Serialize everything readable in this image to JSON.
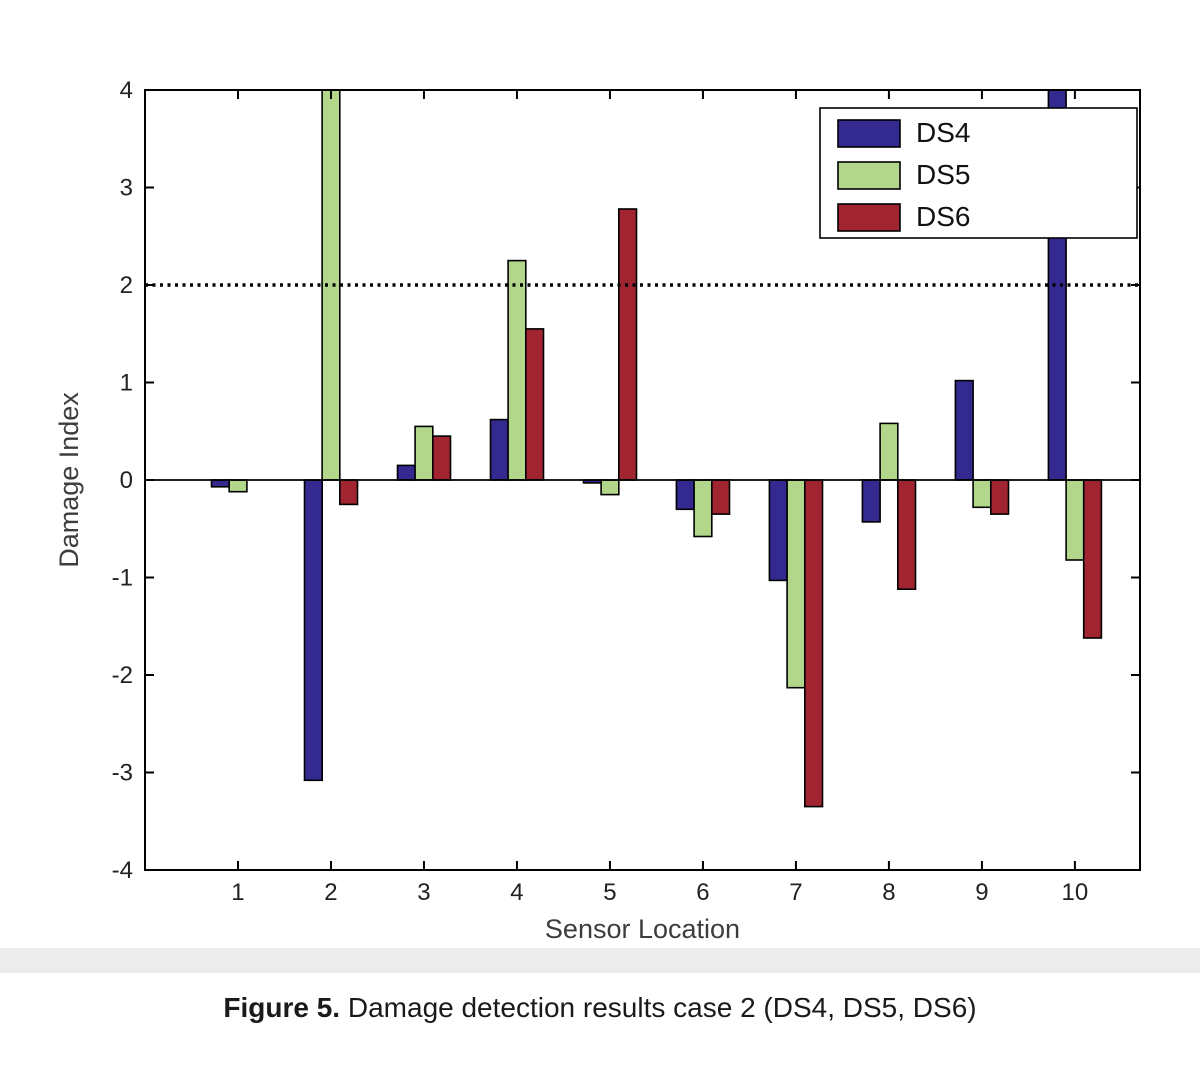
{
  "caption": {
    "label": "Figure 5.",
    "text": " Damage detection results case 2 (DS4, DS5, DS6)"
  },
  "chart_data": {
    "type": "bar",
    "title": "",
    "xlabel": "Sensor Location",
    "ylabel": "Damage Index",
    "categories": [
      1,
      2,
      3,
      4,
      5,
      6,
      7,
      8,
      9,
      10
    ],
    "series": [
      {
        "name": "DS4",
        "color": "#33298e",
        "values": [
          -0.07,
          -3.08,
          0.15,
          0.62,
          -0.03,
          -0.3,
          -1.03,
          -0.43,
          1.02,
          4.0
        ]
      },
      {
        "name": "DS5",
        "color": "#b2d78a",
        "values": [
          -0.12,
          4.0,
          0.55,
          2.25,
          -0.15,
          -0.58,
          -2.13,
          0.58,
          -0.28,
          -0.82
        ]
      },
      {
        "name": "DS6",
        "color": "#a12531",
        "values": [
          0.0,
          -0.25,
          0.45,
          1.55,
          2.78,
          -0.35,
          -3.35,
          -1.12,
          -0.35,
          -1.62
        ]
      }
    ],
    "ylim": [
      -4,
      4
    ],
    "yticks": [
      -4,
      -3,
      -2,
      -1,
      0,
      1,
      2,
      3,
      4
    ],
    "threshold": 2,
    "zero_line": 0,
    "legend_position": "top-right",
    "grid": false,
    "bar_outline": "#000000",
    "axis_color": "#000000",
    "label_color": "#3d3d3d",
    "tick_label_color": "#222222"
  }
}
